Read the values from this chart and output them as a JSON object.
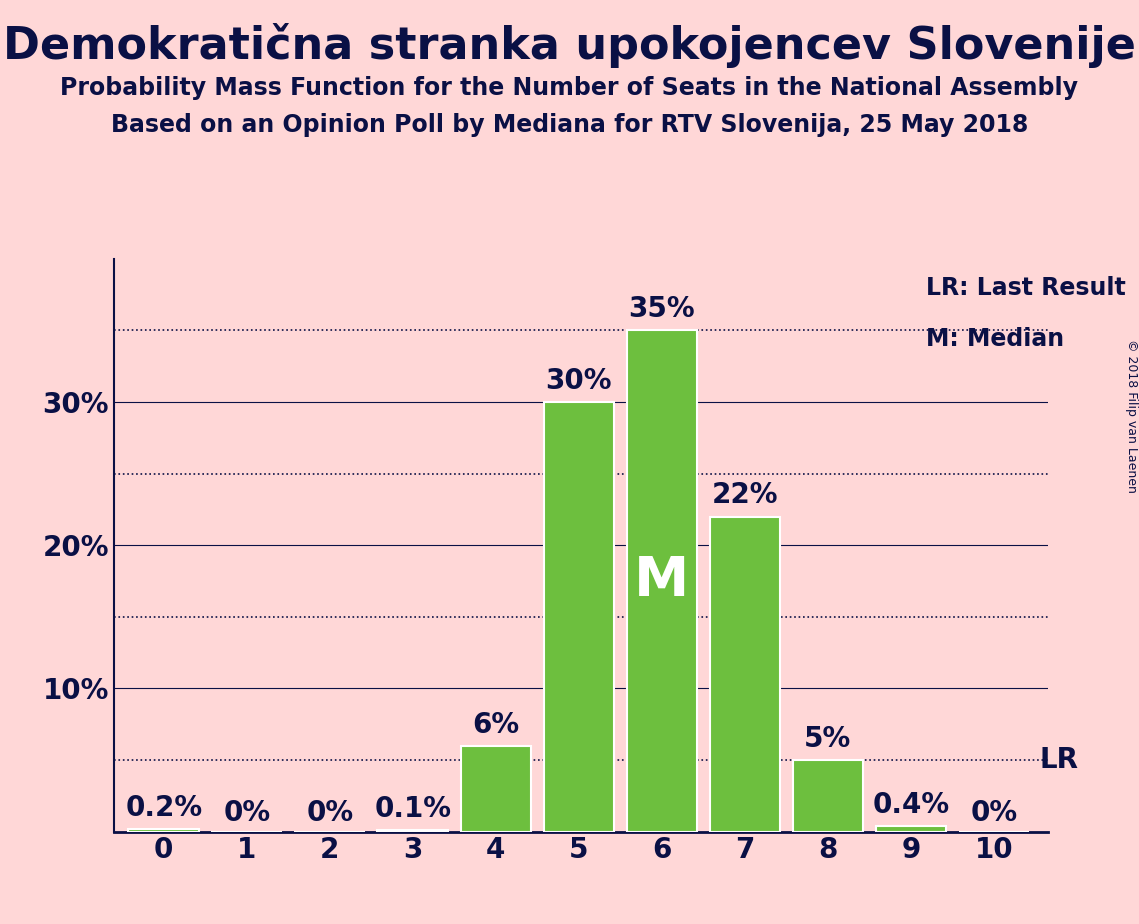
{
  "title": "Demokratična stranka upokojencev Slovenije",
  "subtitle1": "Probability Mass Function for the Number of Seats in the National Assembly",
  "subtitle2": "Based on an Opinion Poll by Mediana for RTV Slovenija, 25 May 2018",
  "copyright": "© 2018 Filip van Laenen",
  "categories": [
    0,
    1,
    2,
    3,
    4,
    5,
    6,
    7,
    8,
    9,
    10
  ],
  "values": [
    0.2,
    0.0,
    0.0,
    0.1,
    6.0,
    30.0,
    35.0,
    22.0,
    5.0,
    0.4,
    0.0
  ],
  "bar_color": "#6DBF3E",
  "bar_edge_color": "#ffffff",
  "background_color": "#FFD7D7",
  "text_color": "#0A1045",
  "median_bar_index": 6,
  "median_label": "M",
  "lr_value": 5.0,
  "lr_label": "LR",
  "legend_lr": "LR: Last Result",
  "legend_m": "M: Median",
  "ylim": [
    0,
    40
  ],
  "major_yticks": [
    10,
    20,
    30
  ],
  "minor_yticks": [
    5,
    15,
    25,
    35
  ],
  "bar_labels": [
    "0.2%",
    "0%",
    "0%",
    "0.1%",
    "6%",
    "30%",
    "35%",
    "22%",
    "5%",
    "0.4%",
    "0%"
  ],
  "title_fontsize": 32,
  "subtitle_fontsize": 17,
  "tick_fontsize": 20,
  "bar_label_fontsize": 20,
  "legend_fontsize": 17,
  "median_fontsize": 40
}
